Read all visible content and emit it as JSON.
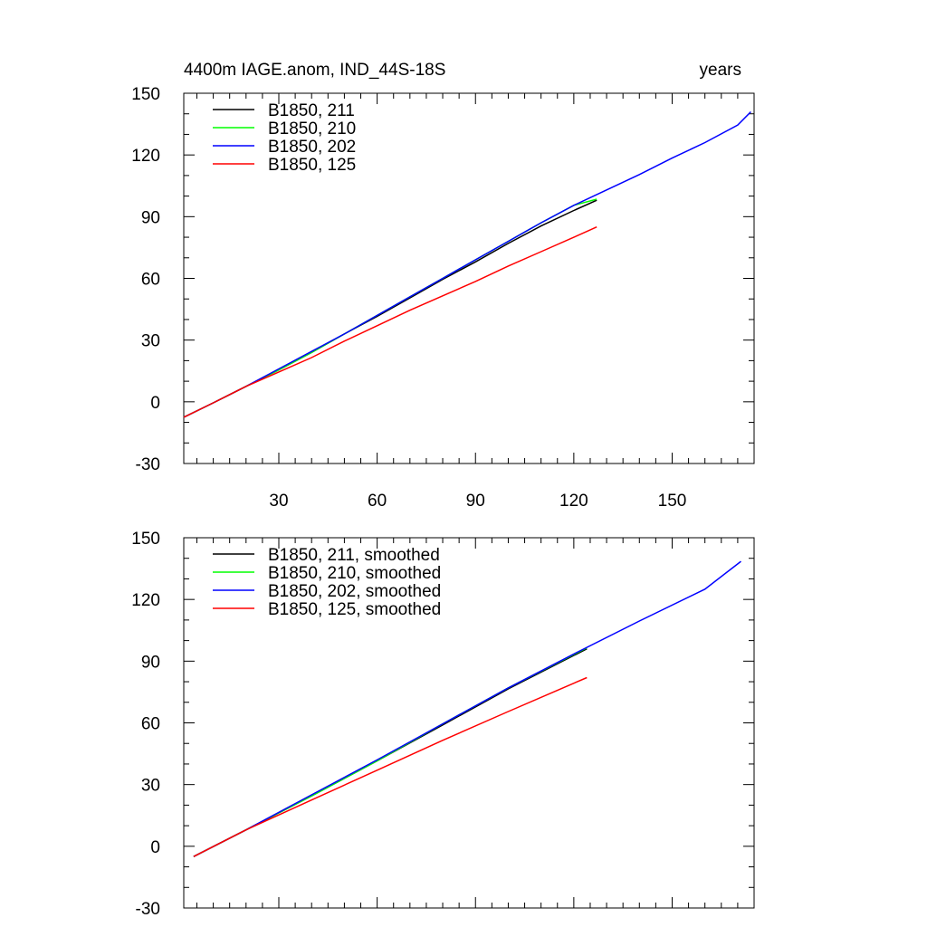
{
  "figure": {
    "title_left": "4400m IAGE.anom, IND_44S-18S",
    "title_right": "years"
  },
  "chart_data": [
    {
      "type": "line",
      "title": "4400m IAGE.anom, IND_44S-18S",
      "units_label": "years",
      "xlim": [
        1,
        175
      ],
      "ylim": [
        -30,
        150
      ],
      "xticks": [
        30,
        60,
        90,
        120,
        150
      ],
      "yticks": [
        -30,
        0,
        30,
        60,
        90,
        120,
        150
      ],
      "x_ticklabels_shown": true,
      "grid": false,
      "legend_position": "top-left",
      "series": [
        {
          "name": "B1850, 211",
          "color": "#000000",
          "x": [
            1,
            10,
            20,
            30,
            40,
            50,
            60,
            70,
            80,
            90,
            100,
            110,
            120,
            127
          ],
          "y": [
            -7.5,
            -0.5,
            7.5,
            15.5,
            24,
            33,
            41.5,
            50.5,
            59.5,
            68,
            77,
            85.5,
            93,
            98
          ]
        },
        {
          "name": "B1850, 210",
          "color": "#00ff00",
          "x": [
            1,
            10,
            20,
            30,
            40,
            50,
            60,
            70,
            80,
            90,
            100,
            110,
            120,
            127
          ],
          "y": [
            -7.5,
            -0.5,
            7.5,
            15.5,
            24,
            33,
            42,
            51,
            60,
            69,
            78,
            87,
            95.5,
            98.5
          ]
        },
        {
          "name": "B1850, 202",
          "color": "#0000ff",
          "x": [
            1,
            10,
            20,
            30,
            40,
            50,
            60,
            70,
            80,
            90,
            100,
            110,
            120,
            130,
            140,
            150,
            160,
            170,
            174
          ],
          "y": [
            -7.5,
            -0.5,
            7.5,
            16,
            24.5,
            33,
            42,
            51,
            60,
            69,
            78,
            87,
            95.5,
            103,
            110.5,
            118.5,
            126,
            134.5,
            141
          ]
        },
        {
          "name": "B1850, 125",
          "color": "#ff0000",
          "x": [
            1,
            10,
            20,
            30,
            40,
            50,
            60,
            70,
            80,
            90,
            100,
            110,
            120,
            127
          ],
          "y": [
            -7.5,
            -0.5,
            7.5,
            14.5,
            21.5,
            29.5,
            37,
            44.5,
            51.5,
            58.5,
            66,
            73,
            80,
            85
          ]
        }
      ]
    },
    {
      "type": "line",
      "xlim": [
        1,
        175
      ],
      "ylim": [
        -30,
        150
      ],
      "xticks": [
        30,
        60,
        90,
        120,
        150
      ],
      "yticks": [
        -30,
        0,
        30,
        60,
        90,
        120,
        150
      ],
      "x_ticklabels_shown": false,
      "grid": false,
      "legend_position": "top-left",
      "series": [
        {
          "name": "B1850, 211, smoothed",
          "color": "#000000",
          "x": [
            4,
            20,
            40,
            60,
            80,
            100,
            124
          ],
          "y": [
            -5,
            8,
            24.5,
            41.5,
            59,
            76.5,
            96
          ]
        },
        {
          "name": "B1850, 210, smoothed",
          "color": "#00ff00",
          "x": [
            4,
            20,
            40,
            60,
            80,
            100,
            124
          ],
          "y": [
            -5,
            8,
            24.5,
            41.5,
            59.5,
            77,
            96.5
          ]
        },
        {
          "name": "B1850, 202, smoothed",
          "color": "#0000ff",
          "x": [
            4,
            20,
            40,
            60,
            80,
            100,
            120,
            140,
            160,
            171
          ],
          "y": [
            -5,
            8,
            25,
            42,
            59.5,
            77,
            93.5,
            109.5,
            125,
            138.5
          ]
        },
        {
          "name": "B1850, 125, smoothed",
          "color": "#ff0000",
          "x": [
            4,
            20,
            40,
            60,
            80,
            100,
            124
          ],
          "y": [
            -5,
            8,
            22.5,
            37,
            51.5,
            65.5,
            82
          ]
        }
      ]
    }
  ]
}
